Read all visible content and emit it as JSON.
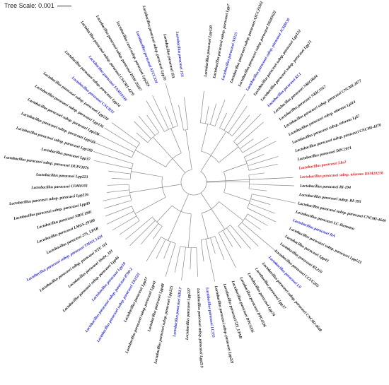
{
  "scale": {
    "label": "Tree Scale: 0.001"
  },
  "colors": {
    "default": "#111111",
    "reference": "#2222cc",
    "highlight": "#e01818",
    "branch": "#8a8a8a"
  },
  "leaves": [
    {
      "label": "Lactobacillus paracasei Lpp120",
      "color": "default"
    },
    {
      "label": "Lactobacillus paracasei subsp. paracasei Lpp7",
      "color": "default"
    },
    {
      "label": "Lactobacillus paracasei N1115",
      "color": "reference"
    },
    {
      "label": "Lactobacillus paracasei subsp. paracasei ATCC25302",
      "color": "default"
    },
    {
      "label": "Lactobacillus paracasei subsp. paracasei DSM5622",
      "color": "default"
    },
    {
      "label": "Lactobacillus paracasei subsp. paracasei JCM8130",
      "color": "reference"
    },
    {
      "label": "Lactobacillus paracasei subsp. paracasei Lpp122",
      "color": "default"
    },
    {
      "label": "Lactobacillus paracasei subsp. paracasei Lpp71",
      "color": "default"
    },
    {
      "label": "Lactobacillus paracasei KL1",
      "color": "reference"
    },
    {
      "label": "Lactobacillus paracasei NRIC0644",
      "color": "default"
    },
    {
      "label": "Lactobacillus paracasei NRIC1917",
      "color": "default"
    },
    {
      "label": "Lactobacillus paracasei subsp. paracasei CNCMI-2877",
      "color": "default"
    },
    {
      "label": "Lactobacillus paracasei subsp. tolerans Lpl14",
      "color": "default"
    },
    {
      "label": "Lactobacillus paracasei subsp. tolerans Lpl7",
      "color": "default"
    },
    {
      "label": "Lactobacillus paracasei subsp. paracasei CNCMI-4270",
      "color": "default"
    },
    {
      "label": "Lactobacillus paracasei DPC2071",
      "color": "default"
    },
    {
      "label": "Lactobacillus paracasei Lbs2",
      "color": "highlight"
    },
    {
      "label": "Lactobacillus paracasei subsp. tolerans DSM20258",
      "color": "highlight"
    },
    {
      "label": "Lactobacillus paracasei RI-194",
      "color": "default"
    },
    {
      "label": "Lactobacillus paracasei subsp. RI-195",
      "color": "default"
    },
    {
      "label": "Lactobacillus paracasei subsp. paracasei CNCMI-4649",
      "color": "default"
    },
    {
      "label": "Lactobacillus paracasei LC-Ikematsu",
      "color": "default"
    },
    {
      "label": "Lactobacillus paracasei HA",
      "color": "reference"
    },
    {
      "label": "Lactobacillus paracasei subsp. paracasei Lpp123",
      "color": "default"
    },
    {
      "label": "Lactobacillus paracasei Lpp43",
      "color": "default"
    },
    {
      "label": "Lactobacillus paracasei RL210",
      "color": "default"
    },
    {
      "label": "Lactobacillus paracasei CCUG205",
      "color": "default"
    },
    {
      "label": "Lactobacillus paracasei L9",
      "color": "reference"
    },
    {
      "label": "Lactobacillus paracasei subsp. paracasei CNCMI-4648",
      "color": "default"
    },
    {
      "label": "Lactobacillus paracasei Lpp37",
      "color": "default"
    },
    {
      "label": "Lactobacillus paracasei Lpp74",
      "color": "default"
    },
    {
      "label": "Lactobacillus paracasei DPC4536",
      "color": "default"
    },
    {
      "label": "Lactobacillus paracasei DPC4206",
      "color": "default"
    },
    {
      "label": "Lactobacillus paracasei 525_LPAR",
      "color": "default"
    },
    {
      "label": "Lactobacillus paracasei subsp. paracasei Lpp221",
      "color": "default"
    },
    {
      "label": "Lactobacillus paracasei LC355",
      "color": "reference"
    },
    {
      "label": "Lactobacillus paracasei subsp. paracasei Lpp219",
      "color": "default"
    },
    {
      "label": "Lactobacillus paracasei Lpp227",
      "color": "default"
    },
    {
      "label": "Lactobacillus paracasei HDL7",
      "color": "reference"
    },
    {
      "label": "Lactobacillus paracasei subsp. paracasei Lpp225",
      "color": "default"
    },
    {
      "label": "Lactobacillus paracasei Lpp48",
      "color": "default"
    },
    {
      "label": "Lactobacillus paracasei subsp. paracasei Lpp41",
      "color": "default"
    },
    {
      "label": "Lactobacillus paracasei Lpp17",
      "color": "default"
    },
    {
      "label": "Lactobacillus paracasei subsp. paracasei TK1501",
      "color": "reference"
    },
    {
      "label": "Lactobacillus paracasei subsp. paracasei 8700:2",
      "color": "reference"
    },
    {
      "label": "Lactobacillus paracasei Lpp18",
      "color": "reference"
    },
    {
      "label": "Lactobacillus paracasei subsp. paracasei Lpp46",
      "color": "default"
    },
    {
      "label": "Lactobacillus paracasei 1bnbe_181",
      "color": "default"
    },
    {
      "label": "Lactobacillus paracasei subsp. paracasei NTU 101",
      "color": "default"
    },
    {
      "label": "Lactobacillus paracasei subsp. paracasei TMW1.1434",
      "color": "reference"
    },
    {
      "label": "Lactobacillus paracasei 275_LPAR",
      "color": "default"
    },
    {
      "label": "Lactobacillus paracasei LMGS-29188",
      "color": "default"
    },
    {
      "label": "Lactobacillus paracasei NRIC1981",
      "color": "default"
    },
    {
      "label": "Lactobacillus paracasei subsp. paracasei Lpp49",
      "color": "default"
    },
    {
      "label": "Lactobacillus paracasei subsp. paracasei Lpp226",
      "color": "default"
    },
    {
      "label": "Lactobacillus paracasei COM0101",
      "color": "default"
    },
    {
      "label": "Lactobacillus paracasei Lpp223",
      "color": "default"
    },
    {
      "label": "Lactobacillus paracasei subsp. paracasei DUP13076",
      "color": "default"
    },
    {
      "label": "Lactobacillus paracasei Lpp37",
      "color": "default"
    },
    {
      "label": "Lactobacillus paracasei subsp. paracasei Lpp189",
      "color": "default"
    },
    {
      "label": "Lactobacillus paracasei subsp. paracasei Lpp125",
      "color": "default"
    },
    {
      "label": "Lactobacillus paracasei subsp. paracasei Lpp228",
      "color": "default"
    },
    {
      "label": "Lactobacillus paracasei subsp. paracasei Lpp126",
      "color": "default"
    },
    {
      "label": "Lactobacillus paracasei subsp. paracasei Lpp230",
      "color": "default"
    },
    {
      "label": "Lactobacillus paracasei CAUH35",
      "color": "reference"
    },
    {
      "label": "Lactobacillus paracasei subsp. paracasei Lpp14",
      "color": "default"
    },
    {
      "label": "Lactobacillus paracasei FAM18149",
      "color": "reference"
    },
    {
      "label": "Lactobacillus paracasei subsp. paracasei CNCM1-4270",
      "color": "default"
    },
    {
      "label": "Lactobacillus paracasei subsp. paracasei DSM 20207",
      "color": "default"
    },
    {
      "label": "Lactobacillus casei subsp. paracasei Lpp229",
      "color": "default"
    },
    {
      "label": "Lactobacillus paracasei ATCC334",
      "color": "reference"
    },
    {
      "label": "Lactobacillus paracasei subsp. paracasei Lpp70",
      "color": "default"
    },
    {
      "label": "Lactobacillus paracasei IIA",
      "color": "default"
    },
    {
      "label": "Lactobacillus paracasei JSS",
      "color": "reference"
    }
  ]
}
